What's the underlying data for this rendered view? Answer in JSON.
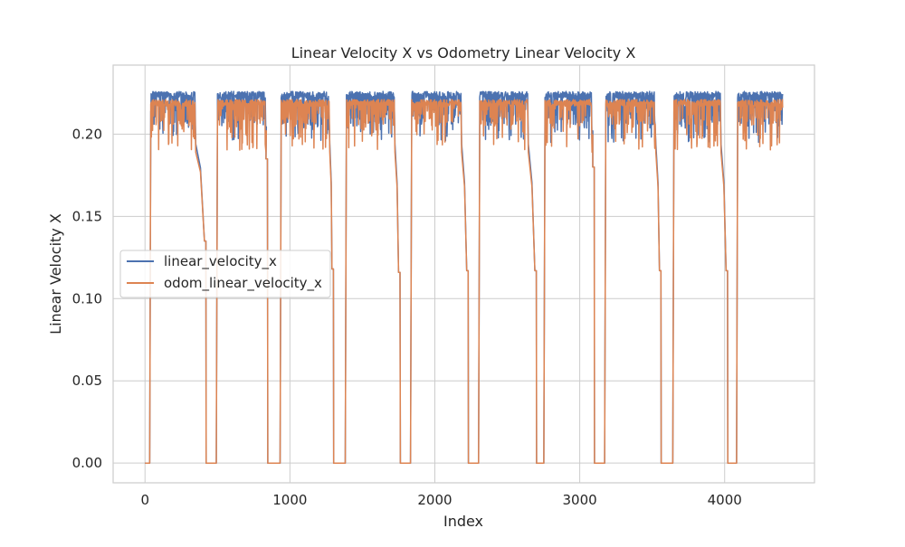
{
  "chart_data": {
    "type": "line",
    "title": "Linear Velocity X vs Odometry Linear Velocity X",
    "xlabel": "Index",
    "ylabel": "Linear Velocity X",
    "xlim": [
      -220,
      4620
    ],
    "ylim": [
      -0.012,
      0.242
    ],
    "xticks": [
      0,
      1000,
      2000,
      3000,
      4000
    ],
    "yticks": [
      0.0,
      0.05,
      0.1,
      0.15,
      0.2
    ],
    "xtick_labels": [
      "0",
      "1000",
      "2000",
      "3000",
      "4000"
    ],
    "ytick_labels": [
      "0.00",
      "0.05",
      "0.10",
      "0.15",
      "0.20"
    ],
    "grid": true,
    "legend_position": "center-left",
    "x_range": [
      0,
      4400
    ],
    "segments": [
      {
        "start": 40,
        "end": 345,
        "drop_level": 0.135,
        "drop_end": 420,
        "zero_end": 490
      },
      {
        "start": 500,
        "end": 830,
        "drop_level": 0.185,
        "drop_end": 845,
        "zero_end": 930
      },
      {
        "start": 940,
        "end": 1270,
        "drop_level": 0.118,
        "drop_end": 1300,
        "zero_end": 1380
      },
      {
        "start": 1390,
        "end": 1720,
        "drop_level": 0.116,
        "drop_end": 1760,
        "zero_end": 1830
      },
      {
        "start": 1840,
        "end": 2180,
        "drop_level": 0.117,
        "drop_end": 2230,
        "zero_end": 2300
      },
      {
        "start": 2310,
        "end": 2640,
        "drop_level": 0.117,
        "drop_end": 2700,
        "zero_end": 2750
      },
      {
        "start": 2760,
        "end": 3080,
        "drop_level": 0.18,
        "drop_end": 3100,
        "zero_end": 3170
      },
      {
        "start": 3180,
        "end": 3520,
        "drop_level": 0.117,
        "drop_end": 3560,
        "zero_end": 3640
      },
      {
        "start": 3650,
        "end": 3970,
        "drop_level": 0.117,
        "drop_end": 4020,
        "zero_end": 4080
      },
      {
        "start": 4090,
        "end": 4400,
        "drop_level": 0.2,
        "drop_end": 4400,
        "zero_end": 4400
      }
    ],
    "series": [
      {
        "name": "linear_velocity_x",
        "color": "#4c72b0",
        "plateau": 0.224,
        "noise_low": 0.195
      },
      {
        "name": "odom_linear_velocity_x",
        "color": "#dd8452",
        "plateau": 0.219,
        "noise_low": 0.19
      }
    ]
  }
}
